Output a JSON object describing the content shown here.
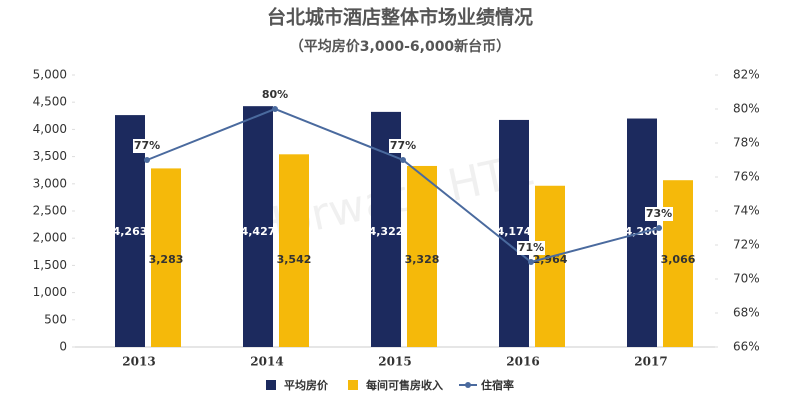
{
  "chart_data": {
    "type": "bar",
    "title": "台北城市酒店整体市场业绩情况",
    "subtitle": "（平均房价3,000-6,000新台币）",
    "watermark": "Horwath HTL",
    "categories": [
      "2013",
      "2014",
      "2015",
      "2016",
      "2017"
    ],
    "series": [
      {
        "name": "平均房价",
        "color": "#1c2a5e",
        "values": [
          4263,
          4427,
          4322,
          4174,
          4200
        ],
        "value_labels": [
          "4,263",
          "4,427",
          "4,322",
          "4,174",
          "4,200"
        ]
      },
      {
        "name": "每间可售房收入",
        "color": "#f5b90a",
        "values": [
          3283,
          3542,
          3328,
          2964,
          3066
        ],
        "value_labels": [
          "3,283",
          "3,542",
          "3,328",
          "2,964",
          "3,066"
        ]
      },
      {
        "name": "住宿率",
        "type": "line",
        "axis": "y2",
        "color": "#4a6a9e",
        "values": [
          77,
          80,
          77,
          71,
          73
        ],
        "value_labels": [
          "77%",
          "80%",
          "77%",
          "71%",
          "73%"
        ]
      }
    ],
    "ylim": [
      0,
      5000
    ],
    "yticks": [
      0,
      500,
      {
        "value": 1000,
        "label": "1,000"
      },
      {
        "value": 1500,
        "label": "1,500"
      },
      {
        "value": 2000,
        "label": "2,000"
      },
      {
        "value": 2500,
        "label": "2,500"
      },
      {
        "value": 3000,
        "label": "3,000"
      },
      {
        "value": 3500,
        "label": "3,500"
      },
      {
        "value": 4000,
        "label": "4,000"
      },
      {
        "value": 4500,
        "label": "4,500"
      },
      {
        "value": 5000,
        "label": "5,000"
      }
    ],
    "y2lim": [
      66,
      82
    ],
    "y2ticks": [
      {
        "value": 66,
        "label": "66%"
      },
      {
        "value": 68,
        "label": "68%"
      },
      {
        "value": 70,
        "label": "70%"
      },
      {
        "value": 72,
        "label": "72%"
      },
      {
        "value": 74,
        "label": "74%"
      },
      {
        "value": 76,
        "label": "76%"
      },
      {
        "value": 78,
        "label": "78%"
      },
      {
        "value": 80,
        "label": "80%"
      },
      {
        "value": 82,
        "label": "82%"
      }
    ],
    "grid": false
  }
}
